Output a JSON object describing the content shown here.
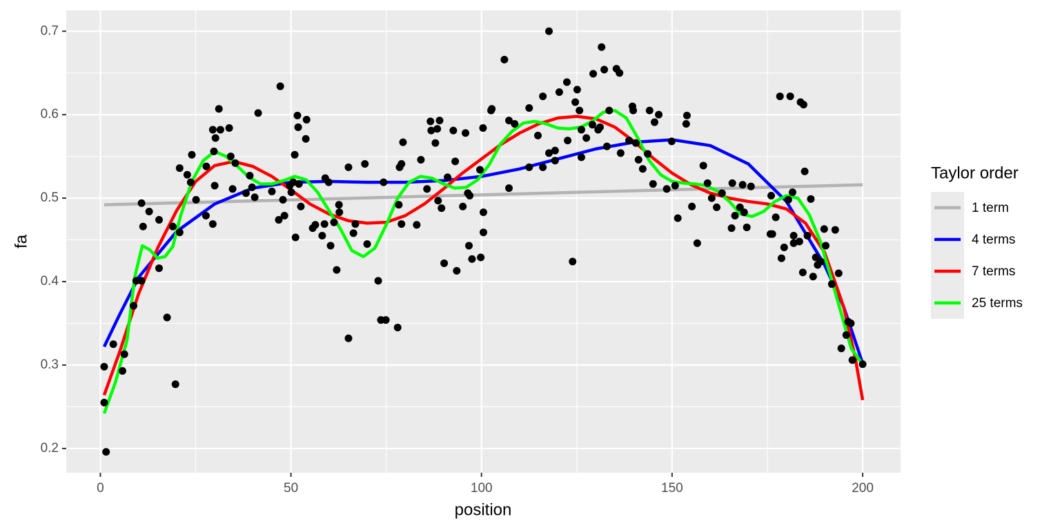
{
  "chart_data": {
    "type": "scatter",
    "xlabel": "position",
    "ylabel": "fa",
    "legend_title": "Taylor order",
    "legend_position": "right",
    "grid": true,
    "xlim": [
      -8.95,
      209.95
    ],
    "ylim": [
      0.171,
      0.725
    ],
    "xticks": [
      0,
      50,
      100,
      150,
      200
    ],
    "yticks": [
      0.2,
      0.3,
      0.4,
      0.5,
      0.6,
      0.7
    ],
    "point_color": "#000000",
    "points": {
      "x": [
        1,
        1,
        1.5,
        3.4,
        5.8,
        6.3,
        8.7,
        9.4,
        10.8,
        10.8,
        11.2,
        12.8,
        15.4,
        15.4,
        17.5,
        19,
        19.7,
        20.8,
        20.8,
        22.8,
        23.7,
        24,
        25.1,
        27.7,
        27.8,
        29.5,
        29.5,
        29.8,
        30.2,
        30,
        31.1,
        31.5,
        33.8,
        34.2,
        34.7,
        35.4,
        38.2,
        39.2,
        39.8,
        40.5,
        41.4,
        45,
        46.8,
        47.2,
        47.9,
        48.3,
        49.7,
        50.1,
        50.6,
        51,
        51.2,
        51.7,
        51.9,
        52.1,
        52.6,
        53.9,
        54.1,
        55.7,
        56.4,
        58.2,
        58.8,
        59,
        59.9,
        60.4,
        61.3,
        62,
        62.6,
        62.7,
        65.1,
        65.1,
        66.4,
        66.9,
        69.4,
        70,
        72.9,
        73.6,
        74.3,
        74.9,
        78,
        78.3,
        78.5,
        79,
        79,
        79.4,
        83,
        84.1,
        85.7,
        86.6,
        86.8,
        87.9,
        88.4,
        88.6,
        89,
        89.5,
        90.2,
        91.1,
        92.6,
        93.1,
        93.5,
        95.1,
        95.8,
        96.4,
        96.7,
        96.9,
        97.5,
        99.6,
        99.8,
        100.4,
        100.5,
        100.5,
        102.5,
        102.7,
        106,
        107.2,
        107.2,
        108.7,
        112.5,
        112.5,
        114.8,
        116.1,
        116.1,
        117.7,
        117.7,
        119.3,
        119.3,
        120.4,
        122.4,
        122.6,
        123.9,
        124.6,
        125.1,
        125.7,
        126.2,
        126.2,
        127.5,
        129.1,
        129.3,
        130.6,
        131.1,
        131.5,
        132.2,
        132.9,
        133.5,
        135.4,
        136.2,
        136.5,
        138.7,
        139.6,
        139.8,
        140.5,
        141.2,
        142.3,
        143.6,
        144.1,
        145,
        145.4,
        146.5,
        148.6,
        149.9,
        150.8,
        151.5,
        153.7,
        153.9,
        155.2,
        156.6,
        158.2,
        159.3,
        160.4,
        161.7,
        163.1,
        165.6,
        165.8,
        166.5,
        167.8,
        168.5,
        168.9,
        169.6,
        170.7,
        175.8,
        176,
        176.3,
        177.2,
        178.3,
        178.7,
        179.4,
        180.5,
        181,
        181.6,
        181.9,
        181.9,
        183.4,
        183.7,
        184.3,
        184.5,
        184.8,
        185.5,
        186.4,
        187,
        187.7,
        188.2,
        189,
        189.9,
        190.3,
        191.9,
        192.8,
        193.7,
        194.4,
        195.7,
        196.2,
        196.9,
        197.3,
        200
      ],
      "y": [
        0.255,
        0.298,
        0.196,
        0.325,
        0.293,
        0.313,
        0.371,
        0.401,
        0.401,
        0.494,
        0.466,
        0.484,
        0.474,
        0.416,
        0.357,
        0.466,
        0.277,
        0.459,
        0.536,
        0.528,
        0.519,
        0.552,
        0.498,
        0.479,
        0.538,
        0.582,
        0.469,
        0.556,
        0.572,
        0.515,
        0.607,
        0.582,
        0.584,
        0.55,
        0.511,
        0.542,
        0.506,
        0.527,
        0.513,
        0.501,
        0.602,
        0.508,
        0.474,
        0.634,
        0.498,
        0.479,
        0.515,
        0.507,
        0.519,
        0.552,
        0.453,
        0.599,
        0.585,
        0.517,
        0.49,
        0.571,
        0.594,
        0.464,
        0.468,
        0.455,
        0.469,
        0.524,
        0.519,
        0.443,
        0.471,
        0.414,
        0.492,
        0.483,
        0.332,
        0.537,
        0.458,
        0.469,
        0.541,
        0.445,
        0.401,
        0.354,
        0.519,
        0.354,
        0.345,
        0.492,
        0.537,
        0.541,
        0.469,
        0.567,
        0.468,
        0.546,
        0.511,
        0.592,
        0.581,
        0.566,
        0.583,
        0.497,
        0.593,
        0.488,
        0.422,
        0.525,
        0.581,
        0.544,
        0.413,
        0.49,
        0.578,
        0.506,
        0.443,
        0.503,
        0.427,
        0.534,
        0.429,
        0.584,
        0.459,
        0.483,
        0.605,
        0.607,
        0.666,
        0.593,
        0.512,
        0.589,
        0.608,
        0.537,
        0.575,
        0.622,
        0.537,
        0.7,
        0.554,
        0.545,
        0.557,
        0.627,
        0.639,
        0.569,
        0.424,
        0.615,
        0.63,
        0.605,
        0.549,
        0.582,
        0.572,
        0.588,
        0.649,
        0.582,
        0.585,
        0.681,
        0.654,
        0.562,
        0.605,
        0.655,
        0.65,
        0.554,
        0.569,
        0.61,
        0.605,
        0.566,
        0.546,
        0.535,
        0.553,
        0.605,
        0.517,
        0.591,
        0.6,
        0.511,
        0.568,
        0.515,
        0.476,
        0.589,
        0.599,
        0.49,
        0.446,
        0.539,
        0.518,
        0.5,
        0.489,
        0.506,
        0.464,
        0.518,
        0.479,
        0.489,
        0.516,
        0.483,
        0.465,
        0.514,
        0.457,
        0.503,
        0.457,
        0.477,
        0.622,
        0.428,
        0.441,
        0.498,
        0.622,
        0.507,
        0.446,
        0.455,
        0.448,
        0.615,
        0.411,
        0.612,
        0.532,
        0.455,
        0.499,
        0.406,
        0.429,
        0.42,
        0.424,
        0.463,
        0.443,
        0.397,
        0.462,
        0.41,
        0.32,
        0.336,
        0.352,
        0.35,
        0.306,
        0.301
      ]
    },
    "series": [
      {
        "name": "1 term",
        "color": "#b3b3b3",
        "x": [
          1,
          200
        ],
        "values": [
          0.492,
          0.516
        ]
      },
      {
        "name": "4 terms",
        "color": "#0000ff",
        "x": [
          1,
          5,
          10,
          20,
          30,
          40,
          50,
          60,
          70,
          80,
          90,
          100,
          110,
          120,
          130,
          140,
          150,
          160,
          170,
          180,
          190,
          195,
          200
        ],
        "values": [
          0.322,
          0.36,
          0.405,
          0.46,
          0.493,
          0.512,
          0.519,
          0.52,
          0.519,
          0.519,
          0.521,
          0.526,
          0.535,
          0.547,
          0.559,
          0.567,
          0.57,
          0.563,
          0.541,
          0.496,
          0.42,
          0.37,
          0.302
        ]
      },
      {
        "name": "7 terms",
        "color": "#ff0000",
        "x": [
          1,
          5,
          10,
          15,
          20,
          25,
          30,
          35,
          40,
          45,
          50,
          55,
          60,
          65,
          70,
          75,
          80,
          85,
          90,
          95,
          100,
          105,
          110,
          115,
          120,
          125,
          130,
          135,
          140,
          145,
          150,
          155,
          160,
          165,
          170,
          175,
          180,
          185,
          190,
          195,
          198,
          200
        ],
        "values": [
          0.264,
          0.315,
          0.385,
          0.44,
          0.485,
          0.52,
          0.539,
          0.544,
          0.538,
          0.526,
          0.51,
          0.493,
          0.481,
          0.473,
          0.47,
          0.471,
          0.479,
          0.493,
          0.511,
          0.53,
          0.547,
          0.564,
          0.578,
          0.589,
          0.596,
          0.598,
          0.595,
          0.585,
          0.568,
          0.548,
          0.53,
          0.516,
          0.506,
          0.5,
          0.496,
          0.493,
          0.487,
          0.47,
          0.435,
          0.37,
          0.31,
          0.258
        ]
      },
      {
        "name": "25 terms",
        "color": "#00ff00",
        "x": [
          1,
          4,
          7,
          9,
          11,
          13,
          15,
          17,
          19,
          21,
          24,
          27,
          30,
          33,
          36,
          39,
          42,
          45,
          48,
          51,
          54,
          57,
          60,
          63,
          66,
          69,
          72,
          75,
          78,
          81,
          84,
          87,
          90,
          93,
          96,
          99,
          102,
          105,
          108,
          111,
          114,
          117,
          120,
          123,
          126,
          129,
          132,
          135,
          138,
          141,
          144,
          147,
          150,
          153,
          156,
          159,
          162,
          165,
          168,
          171,
          174,
          177,
          180,
          183,
          186,
          189,
          192,
          195,
          197,
          200
        ],
        "values": [
          0.242,
          0.28,
          0.33,
          0.405,
          0.443,
          0.438,
          0.428,
          0.43,
          0.442,
          0.478,
          0.52,
          0.545,
          0.556,
          0.55,
          0.538,
          0.525,
          0.517,
          0.517,
          0.521,
          0.526,
          0.522,
          0.507,
          0.485,
          0.463,
          0.437,
          0.43,
          0.44,
          0.468,
          0.5,
          0.519,
          0.526,
          0.524,
          0.517,
          0.512,
          0.513,
          0.522,
          0.54,
          0.565,
          0.58,
          0.59,
          0.592,
          0.589,
          0.584,
          0.583,
          0.585,
          0.592,
          0.603,
          0.605,
          0.596,
          0.572,
          0.545,
          0.528,
          0.52,
          0.518,
          0.517,
          0.515,
          0.508,
          0.496,
          0.481,
          0.478,
          0.484,
          0.496,
          0.503,
          0.5,
          0.48,
          0.447,
          0.4,
          0.352,
          0.32,
          0.301
        ]
      }
    ]
  }
}
